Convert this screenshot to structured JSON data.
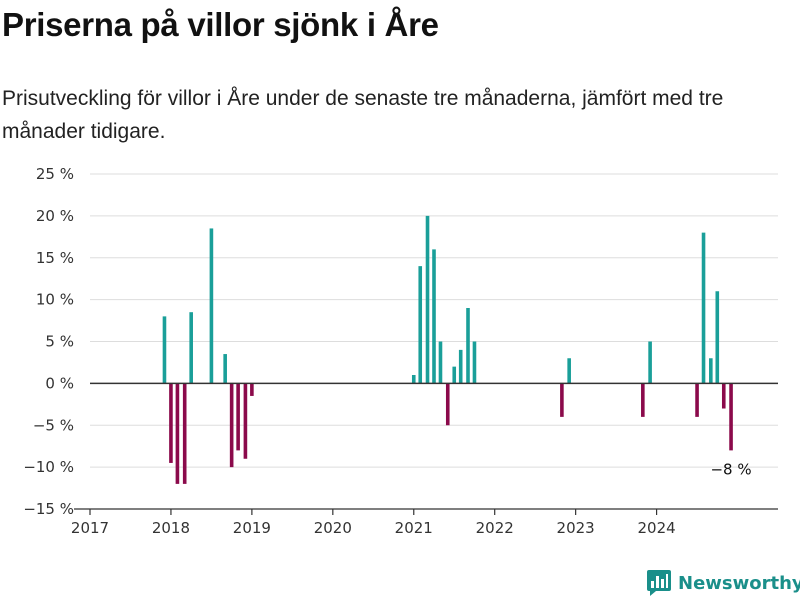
{
  "title": "Priserna på villor sjönk i Åre",
  "subtitle": "Prisutveckling för villor i Åre under de senaste tre månaderna, jämfört med tre månader tidigare.",
  "brand": {
    "name": "Newsworthy",
    "icon": "newsworthy-logo-icon"
  },
  "colors": {
    "positive": "#1a9f99",
    "negative": "#8b0a4b",
    "zero_line": "#333333",
    "grid": "#dddddd"
  },
  "chart_data": {
    "type": "bar",
    "ylim": [
      -15,
      25
    ],
    "xlim": [
      2017,
      2025.5
    ],
    "y_ticks": [
      -15,
      -10,
      -5,
      0,
      5,
      10,
      15,
      20,
      25
    ],
    "y_tick_labels": [
      "−15 %",
      "−10 %",
      "−5 %",
      "0 %",
      "5 %",
      "10 %",
      "15 %",
      "20 %",
      "25 %"
    ],
    "x_ticks": [
      2017,
      2018,
      2019,
      2020,
      2021,
      2022,
      2023,
      2024
    ],
    "x_tick_labels": [
      "2017",
      "2018",
      "2019",
      "2020",
      "2021",
      "2022",
      "2023",
      "2024"
    ],
    "grid": true,
    "points": [
      {
        "x": 2017.92,
        "y": 8
      },
      {
        "x": 2018.0,
        "y": -9.5
      },
      {
        "x": 2018.08,
        "y": -12
      },
      {
        "x": 2018.17,
        "y": -12
      },
      {
        "x": 2018.25,
        "y": 8.5
      },
      {
        "x": 2018.5,
        "y": 18.5
      },
      {
        "x": 2018.67,
        "y": 3.5
      },
      {
        "x": 2018.75,
        "y": -10
      },
      {
        "x": 2018.83,
        "y": -8
      },
      {
        "x": 2018.92,
        "y": -9
      },
      {
        "x": 2019.0,
        "y": -1.5
      },
      {
        "x": 2021.0,
        "y": 1
      },
      {
        "x": 2021.08,
        "y": 14
      },
      {
        "x": 2021.17,
        "y": 20
      },
      {
        "x": 2021.25,
        "y": 16
      },
      {
        "x": 2021.33,
        "y": 5
      },
      {
        "x": 2021.42,
        "y": -5
      },
      {
        "x": 2021.5,
        "y": 2
      },
      {
        "x": 2021.58,
        "y": 4
      },
      {
        "x": 2021.67,
        "y": 9
      },
      {
        "x": 2021.75,
        "y": 5
      },
      {
        "x": 2022.83,
        "y": -4
      },
      {
        "x": 2022.92,
        "y": 3
      },
      {
        "x": 2023.83,
        "y": -4
      },
      {
        "x": 2023.92,
        "y": 5
      },
      {
        "x": 2024.5,
        "y": -4
      },
      {
        "x": 2024.58,
        "y": 18
      },
      {
        "x": 2024.67,
        "y": 3
      },
      {
        "x": 2024.75,
        "y": 11
      },
      {
        "x": 2024.83,
        "y": -3
      },
      {
        "x": 2024.92,
        "y": -8
      }
    ],
    "annotation": {
      "text": "−8 %",
      "x": 2024.92,
      "y": -8
    }
  }
}
